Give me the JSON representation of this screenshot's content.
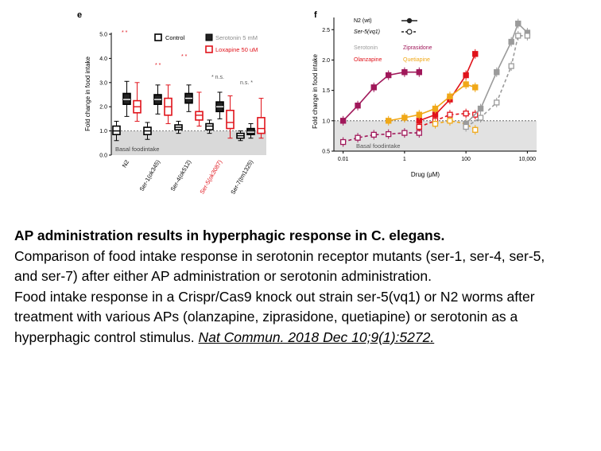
{
  "panel_e": {
    "letter": "e",
    "legend": {
      "control": "Control",
      "serotonin": "Serotonin 5 mM",
      "loxapine": "Loxapine 50 uM"
    },
    "colors": {
      "control": "#000000",
      "serotonin": "#8c8c8c",
      "loxapine": "#e0131b",
      "basal": "#d9d9d9"
    },
    "basal_label": "Basal foodintake",
    "significance": [
      "* *",
      "* *",
      "* *",
      "* n.s.",
      "n.s. *"
    ]
  },
  "panel_f": {
    "letter": "f",
    "legend": {
      "n2": "N2 (wt)",
      "ser5": "Ser-5(vq1)",
      "serotonin": "Serotonin",
      "olanzapine": "Olanzapine",
      "ziprasidone": "Ziprasidone",
      "quetiapine": "Quetiapine"
    },
    "colors": {
      "serotonin": "#9b9b9b",
      "olanzapine": "#e0131b",
      "ziprasidone": "#a0185a",
      "quetiapine": "#f0a818",
      "basal": "#e2e2e2"
    },
    "basal_label": "Basal foodintake"
  },
  "chart_data": [
    {
      "type": "box",
      "ylabel": "Fold change in food intake",
      "ylim": [
        0,
        5
      ],
      "yticks": [
        "0.0",
        "1.0",
        "2.0",
        "3.0",
        "4.0",
        "5.0"
      ],
      "categories": [
        "N2",
        "Ser-1(ok345)",
        "Ser-4(ok512)",
        "Ser-5(ok3087)",
        "Ser-7(tm1325)"
      ],
      "category_colors": [
        "#000000",
        "#000000",
        "#000000",
        "#e0131b",
        "#000000"
      ],
      "basal_level": 1.0,
      "series": [
        {
          "name": "Control",
          "boxes": [
            [
              0.6,
              0.85,
              1.0,
              1.2,
              1.4
            ],
            [
              0.65,
              0.85,
              1.0,
              1.15,
              1.35
            ],
            [
              0.9,
              1.05,
              1.15,
              1.25,
              1.4
            ],
            [
              0.9,
              1.05,
              1.2,
              1.3,
              1.45
            ],
            [
              0.6,
              0.7,
              0.8,
              0.9,
              1.0
            ]
          ]
        },
        {
          "name": "Serotonin 5 mM",
          "boxes": [
            [
              1.6,
              2.1,
              2.3,
              2.55,
              3.05
            ],
            [
              1.7,
              2.1,
              2.3,
              2.5,
              2.9
            ],
            [
              1.8,
              2.15,
              2.35,
              2.55,
              2.9
            ],
            [
              1.5,
              1.8,
              2.0,
              2.2,
              2.6
            ],
            [
              0.7,
              0.85,
              0.95,
              1.1,
              1.3
            ]
          ]
        },
        {
          "name": "Loxapine 50 uM",
          "boxes": [
            [
              1.4,
              1.75,
              2.0,
              2.25,
              3.0
            ],
            [
              1.3,
              1.65,
              2.0,
              2.35,
              2.9
            ],
            [
              1.2,
              1.45,
              1.65,
              1.8,
              2.6
            ],
            [
              0.7,
              1.1,
              1.35,
              1.85,
              2.45
            ],
            [
              0.7,
              0.9,
              1.1,
              1.55,
              2.35
            ]
          ]
        }
      ]
    },
    {
      "type": "line",
      "xlabel": "Drug (μM)",
      "ylabel": "Fold change in food intake",
      "xscale": "log",
      "xlim": [
        0.005,
        20000
      ],
      "ylim": [
        0.5,
        2.7
      ],
      "xticks": [
        "0.01",
        "1",
        "100",
        "10,000"
      ],
      "yticks": [
        "0.5",
        "1.0",
        "1.5",
        "2.0",
        "2.5"
      ],
      "basal_level": 1.0,
      "series": [
        {
          "name": "Olanzapine N2 (wt)",
          "strain": "N2 (wt)",
          "drug": "Olanzapine",
          "x": [
            0.01,
            0.03,
            0.1,
            0.3,
            1,
            3
          ],
          "y": [
            1.0,
            1.25,
            1.55,
            1.75,
            1.8,
            1.8
          ]
        },
        {
          "name": "Olanzapine Ser-5(vq1)",
          "strain": "Ser-5(vq1)",
          "drug": "Olanzapine",
          "x": [
            0.01,
            0.03,
            0.1,
            0.3,
            1,
            3
          ],
          "y": [
            0.65,
            0.72,
            0.77,
            0.78,
            0.8,
            0.8
          ]
        },
        {
          "name": "Ziprasidone N2 (wt)",
          "strain": "N2 (wt)",
          "drug": "Ziprasidone",
          "x": [
            3,
            10,
            30,
            100,
            200
          ],
          "y": [
            1.0,
            1.1,
            1.35,
            1.75,
            2.1
          ]
        },
        {
          "name": "Ziprasidone Ser-5(vq1)",
          "strain": "Ser-5(vq1)",
          "drug": "Ziprasidone",
          "x": [
            3,
            10,
            30,
            100,
            200
          ],
          "y": [
            0.9,
            1.0,
            1.1,
            1.12,
            1.1
          ]
        },
        {
          "name": "Quetiapine N2 (wt)",
          "strain": "N2 (wt)",
          "drug": "Quetiapine",
          "x": [
            0.3,
            1,
            3,
            10,
            30,
            100,
            200
          ],
          "y": [
            1.0,
            1.05,
            1.1,
            1.2,
            1.4,
            1.6,
            1.55
          ]
        },
        {
          "name": "Quetiapine Ser-5(vq1)",
          "strain": "Ser-5(vq1)",
          "drug": "Quetiapine",
          "x": [
            10,
            30,
            100,
            200
          ],
          "y": [
            0.95,
            1.0,
            0.95,
            0.85
          ]
        },
        {
          "name": "Serotonin N2 (wt)",
          "strain": "N2 (wt)",
          "drug": "Serotonin",
          "x": [
            100,
            300,
            1000,
            3000,
            5000,
            10000
          ],
          "y": [
            0.95,
            1.2,
            1.8,
            2.3,
            2.6,
            2.45
          ]
        },
        {
          "name": "Serotonin Ser-5(vq1)",
          "strain": "Ser-5(vq1)",
          "drug": "Serotonin",
          "x": [
            100,
            300,
            1000,
            3000,
            5000,
            10000
          ],
          "y": [
            0.9,
            1.05,
            1.3,
            1.9,
            2.4,
            2.4
          ]
        }
      ]
    }
  ],
  "caption": {
    "title": "AP administration results in hyperphagic response in C. elegans.",
    "para1": "Comparison of food intake response in serotonin receptor mutants (ser-1, ser-4, ser-5, and ser-7) after either AP administration or serotonin administration.",
    "para2": "Food intake response in a Crispr/Cas9 knock out strain ser-5(vq1) or N2 worms after treatment with various APs (olanzapine, ziprasidone, quetiapine) or serotonin as a hyperphagic control stimulus.",
    "citation": "Nat Commun. 2018 Dec 10;9(1):5272."
  }
}
